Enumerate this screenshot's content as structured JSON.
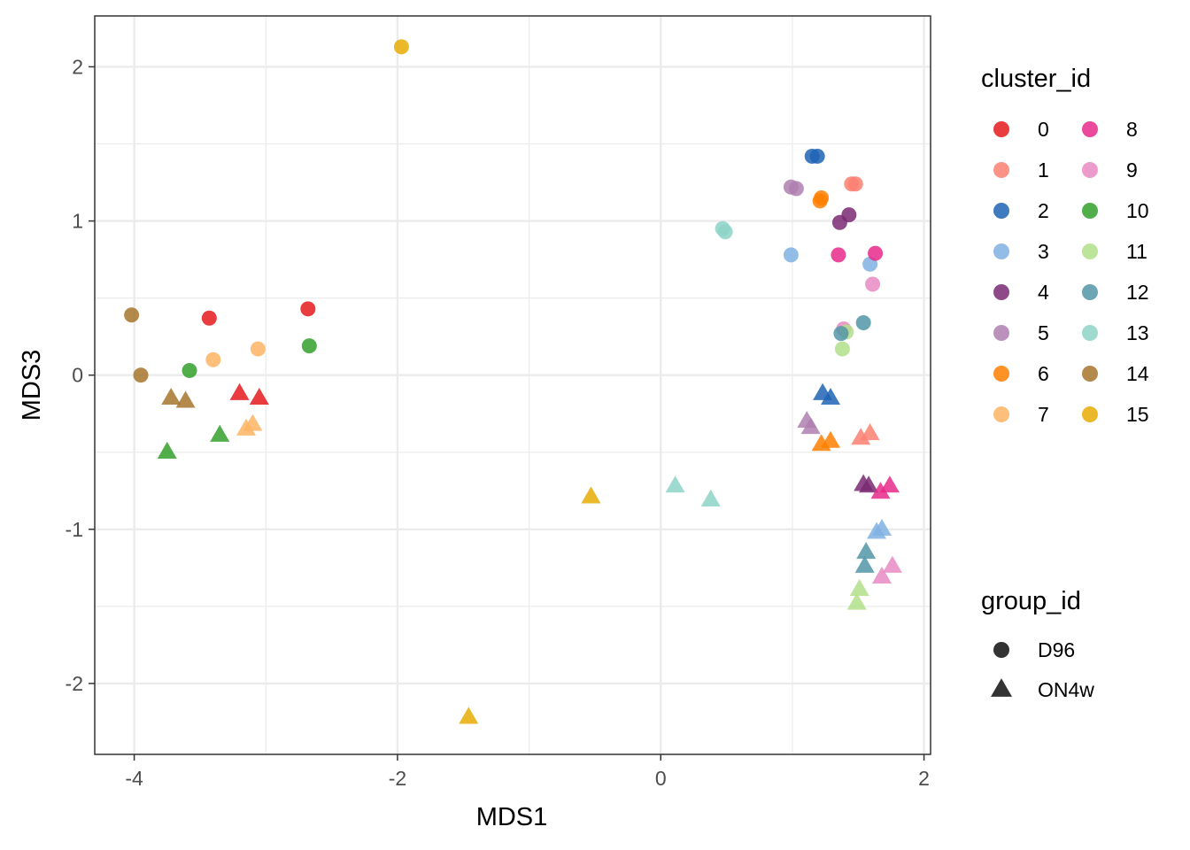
{
  "chart_data": {
    "type": "scatter",
    "xlabel": "MDS1",
    "ylabel": "MDS3",
    "xlim": [
      -4.3,
      2.05
    ],
    "ylim": [
      -2.46,
      2.33
    ],
    "x_ticks": [
      -4,
      -2,
      0,
      2
    ],
    "y_ticks": [
      -2,
      -1,
      0,
      1,
      2
    ],
    "x_tick_labels": [
      "-4",
      "-2",
      "0",
      "2"
    ],
    "y_tick_labels": [
      "-2",
      "-1",
      "0",
      "1",
      "2"
    ],
    "grid": true,
    "legend_position": "right",
    "color_legend": {
      "title": "cluster_id",
      "entries": [
        {
          "label": "0",
          "color": "#E41A1C"
        },
        {
          "label": "1",
          "color": "#FB8072"
        },
        {
          "label": "2",
          "color": "#1F64B4"
        },
        {
          "label": "3",
          "color": "#80B1E3"
        },
        {
          "label": "4",
          "color": "#7A2A73"
        },
        {
          "label": "5",
          "color": "#AF7FAF"
        },
        {
          "label": "6",
          "color": "#FF7F00"
        },
        {
          "label": "7",
          "color": "#FDB462"
        },
        {
          "label": "8",
          "color": "#E7298A"
        },
        {
          "label": "9",
          "color": "#E78AC3"
        },
        {
          "label": "10",
          "color": "#33A02C"
        },
        {
          "label": "11",
          "color": "#B2DF8A"
        },
        {
          "label": "12",
          "color": "#5297A8"
        },
        {
          "label": "13",
          "color": "#8DD3C7"
        },
        {
          "label": "14",
          "color": "#A6762B"
        },
        {
          "label": "15",
          "color": "#E6AB02"
        }
      ]
    },
    "shape_legend": {
      "title": "group_id",
      "entries": [
        {
          "label": "D96",
          "shape": "circle"
        },
        {
          "label": "ON4w",
          "shape": "triangle"
        }
      ]
    },
    "series": [
      {
        "name": "D96",
        "shape": "circle",
        "points": [
          {
            "x": -3.43,
            "y": 0.37,
            "cluster": "0"
          },
          {
            "x": -2.68,
            "y": 0.43,
            "cluster": "0"
          },
          {
            "x": 1.45,
            "y": 1.24,
            "cluster": "1"
          },
          {
            "x": 1.48,
            "y": 1.24,
            "cluster": "1"
          },
          {
            "x": 1.19,
            "y": 1.42,
            "cluster": "2"
          },
          {
            "x": 1.15,
            "y": 1.42,
            "cluster": "2"
          },
          {
            "x": 0.99,
            "y": 0.78,
            "cluster": "3"
          },
          {
            "x": 1.59,
            "y": 0.72,
            "cluster": "3"
          },
          {
            "x": 1.43,
            "y": 1.04,
            "cluster": "4"
          },
          {
            "x": 1.36,
            "y": 0.99,
            "cluster": "4"
          },
          {
            "x": 0.99,
            "y": 1.22,
            "cluster": "5"
          },
          {
            "x": 1.03,
            "y": 1.21,
            "cluster": "5"
          },
          {
            "x": 1.21,
            "y": 1.13,
            "cluster": "6"
          },
          {
            "x": 1.22,
            "y": 1.15,
            "cluster": "6"
          },
          {
            "x": -3.4,
            "y": 0.1,
            "cluster": "7"
          },
          {
            "x": -3.06,
            "y": 0.17,
            "cluster": "7"
          },
          {
            "x": 1.35,
            "y": 0.78,
            "cluster": "8"
          },
          {
            "x": 1.63,
            "y": 0.79,
            "cluster": "8"
          },
          {
            "x": 1.61,
            "y": 0.59,
            "cluster": "9"
          },
          {
            "x": 1.39,
            "y": 0.3,
            "cluster": "9"
          },
          {
            "x": -3.58,
            "y": 0.03,
            "cluster": "10"
          },
          {
            "x": -2.67,
            "y": 0.19,
            "cluster": "10"
          },
          {
            "x": 1.41,
            "y": 0.28,
            "cluster": "11"
          },
          {
            "x": 1.38,
            "y": 0.17,
            "cluster": "11"
          },
          {
            "x": 1.37,
            "y": 0.27,
            "cluster": "12"
          },
          {
            "x": 1.54,
            "y": 0.34,
            "cluster": "12"
          },
          {
            "x": 0.47,
            "y": 0.95,
            "cluster": "13"
          },
          {
            "x": 0.49,
            "y": 0.93,
            "cluster": "13"
          },
          {
            "x": -4.02,
            "y": 0.39,
            "cluster": "14"
          },
          {
            "x": -3.95,
            "y": 0.0,
            "cluster": "14"
          },
          {
            "x": -1.97,
            "y": 2.13,
            "cluster": "15"
          }
        ]
      },
      {
        "name": "ON4w",
        "shape": "triangle",
        "points": [
          {
            "x": -3.2,
            "y": -0.12,
            "cluster": "0"
          },
          {
            "x": -3.05,
            "y": -0.15,
            "cluster": "0"
          },
          {
            "x": 1.52,
            "y": -0.41,
            "cluster": "1"
          },
          {
            "x": 1.59,
            "y": -0.38,
            "cluster": "1"
          },
          {
            "x": 1.23,
            "y": -0.12,
            "cluster": "2"
          },
          {
            "x": 1.29,
            "y": -0.15,
            "cluster": "2"
          },
          {
            "x": 1.64,
            "y": -1.02,
            "cluster": "3"
          },
          {
            "x": 1.68,
            "y": -1.0,
            "cluster": "3"
          },
          {
            "x": 1.54,
            "y": -0.71,
            "cluster": "4"
          },
          {
            "x": 1.58,
            "y": -0.72,
            "cluster": "4"
          },
          {
            "x": 1.11,
            "y": -0.3,
            "cluster": "5"
          },
          {
            "x": 1.14,
            "y": -0.34,
            "cluster": "5"
          },
          {
            "x": 1.22,
            "y": -0.45,
            "cluster": "6"
          },
          {
            "x": 1.29,
            "y": -0.43,
            "cluster": "6"
          },
          {
            "x": -3.15,
            "y": -0.35,
            "cluster": "7"
          },
          {
            "x": -3.1,
            "y": -0.32,
            "cluster": "7"
          },
          {
            "x": 1.67,
            "y": -0.76,
            "cluster": "8"
          },
          {
            "x": 1.74,
            "y": -0.72,
            "cluster": "8"
          },
          {
            "x": 1.68,
            "y": -1.31,
            "cluster": "9"
          },
          {
            "x": 1.76,
            "y": -1.24,
            "cluster": "9"
          },
          {
            "x": -3.75,
            "y": -0.5,
            "cluster": "10"
          },
          {
            "x": -3.35,
            "y": -0.39,
            "cluster": "10"
          },
          {
            "x": 1.51,
            "y": -1.39,
            "cluster": "11"
          },
          {
            "x": 1.49,
            "y": -1.48,
            "cluster": "11"
          },
          {
            "x": 1.56,
            "y": -1.15,
            "cluster": "12"
          },
          {
            "x": 1.55,
            "y": -1.24,
            "cluster": "12"
          },
          {
            "x": 0.11,
            "y": -0.72,
            "cluster": "13"
          },
          {
            "x": 0.38,
            "y": -0.81,
            "cluster": "13"
          },
          {
            "x": -3.72,
            "y": -0.15,
            "cluster": "14"
          },
          {
            "x": -3.61,
            "y": -0.17,
            "cluster": "14"
          },
          {
            "x": -0.53,
            "y": -0.79,
            "cluster": "15"
          },
          {
            "x": -1.46,
            "y": -2.22,
            "cluster": "15"
          }
        ]
      }
    ]
  }
}
